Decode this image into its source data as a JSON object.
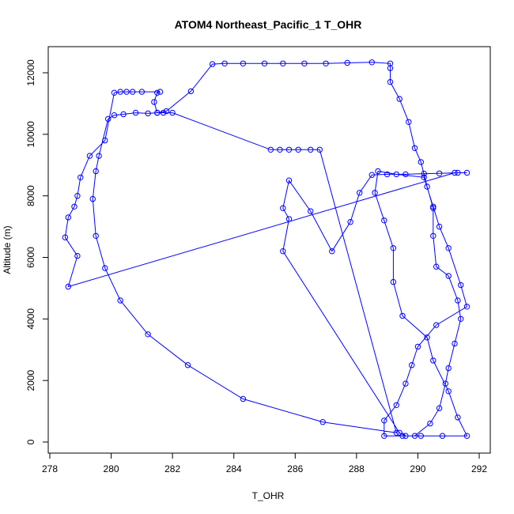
{
  "chart_data": {
    "type": "line",
    "title": "ATOM4 Northeast_Pacific_1 T_OHR",
    "xlabel": "T_OHR",
    "ylabel": "Altitude (m)",
    "xlim": [
      278,
      292
    ],
    "ylim": [
      0,
      12500
    ],
    "xticks": [
      "278",
      "280",
      "282",
      "284",
      "286",
      "288",
      "290",
      "292"
    ],
    "yticks": [
      "0",
      "2000",
      "4000",
      "6000",
      "8000",
      "10000",
      "12000"
    ],
    "grid": false,
    "legend": "none",
    "colors": {
      "series": "#0000ff",
      "axis": "#000000"
    },
    "series": [
      {
        "points": [
          [
            291.6,
            8750
          ],
          [
            291.3,
            8750
          ],
          [
            290.7,
            8730
          ],
          [
            290.2,
            8720
          ],
          [
            289.6,
            8700
          ],
          [
            289.0,
            8700
          ],
          [
            288.5,
            8680
          ],
          [
            288.1,
            8100
          ],
          [
            287.8,
            7150
          ],
          [
            287.2,
            6200
          ],
          [
            286.5,
            7500
          ],
          [
            285.8,
            8500
          ],
          [
            285.6,
            7600
          ],
          [
            285.8,
            7250
          ],
          [
            285.6,
            6200
          ],
          [
            289.4,
            300
          ],
          [
            289.6,
            200
          ],
          [
            290.1,
            200
          ],
          [
            290.8,
            200
          ],
          [
            291.6,
            200
          ],
          [
            291.3,
            800
          ],
          [
            291.0,
            1650
          ],
          [
            290.5,
            2650
          ],
          [
            290.3,
            3400
          ],
          [
            289.5,
            4100
          ],
          [
            289.2,
            5200
          ],
          [
            289.2,
            6300
          ],
          [
            288.9,
            7200
          ],
          [
            288.6,
            8100
          ],
          [
            288.7,
            8800
          ],
          [
            289.3,
            8700
          ],
          [
            290.2,
            8600
          ],
          [
            290.5,
            7650
          ],
          [
            290.7,
            7000
          ],
          [
            291.0,
            6300
          ],
          [
            291.4,
            5100
          ],
          [
            291.6,
            4400
          ],
          [
            290.6,
            3800
          ],
          [
            290.0,
            3100
          ],
          [
            289.8,
            2500
          ],
          [
            289.6,
            1900
          ],
          [
            289.3,
            1200
          ],
          [
            288.9,
            700
          ],
          [
            288.9,
            200
          ],
          [
            289.5,
            200
          ],
          [
            289.9,
            200
          ],
          [
            290.4,
            600
          ],
          [
            290.7,
            1100
          ],
          [
            290.9,
            1900
          ],
          [
            291.0,
            2400
          ],
          [
            291.2,
            3200
          ],
          [
            291.4,
            4000
          ],
          [
            291.3,
            4600
          ],
          [
            291.0,
            5400
          ],
          [
            290.6,
            5700
          ],
          [
            290.5,
            6700
          ],
          [
            290.5,
            7600
          ],
          [
            290.3,
            8300
          ],
          [
            290.1,
            9100
          ],
          [
            289.9,
            9550
          ],
          [
            289.7,
            10400
          ],
          [
            289.4,
            11150
          ],
          [
            289.1,
            11700
          ],
          [
            289.1,
            12150
          ],
          [
            289.1,
            12300
          ],
          [
            288.5,
            12340
          ],
          [
            287.7,
            12320
          ],
          [
            287.0,
            12300
          ],
          [
            286.3,
            12300
          ],
          [
            285.6,
            12300
          ],
          [
            285.0,
            12300
          ],
          [
            284.3,
            12300
          ],
          [
            283.7,
            12300
          ],
          [
            283.3,
            12280
          ],
          [
            282.6,
            11400
          ],
          [
            281.8,
            10750
          ],
          [
            281.5,
            10700
          ],
          [
            281.2,
            10680
          ],
          [
            280.8,
            10700
          ],
          [
            280.4,
            10650
          ],
          [
            280.1,
            10620
          ],
          [
            279.9,
            10500
          ],
          [
            279.6,
            9300
          ],
          [
            279.5,
            8800
          ],
          [
            279.4,
            7900
          ],
          [
            279.5,
            6700
          ],
          [
            279.8,
            5650
          ],
          [
            280.3,
            4600
          ],
          [
            281.2,
            3500
          ],
          [
            282.5,
            2500
          ],
          [
            284.3,
            1400
          ],
          [
            286.9,
            650
          ],
          [
            289.3,
            300
          ],
          [
            286.8,
            9500
          ],
          [
            286.5,
            9500
          ],
          [
            286.1,
            9500
          ],
          [
            285.8,
            9500
          ],
          [
            285.5,
            9500
          ],
          [
            285.2,
            9500
          ],
          [
            282.0,
            10700
          ],
          [
            281.7,
            10700
          ],
          [
            281.5,
            10700
          ],
          [
            281.4,
            11050
          ],
          [
            281.5,
            11350
          ],
          [
            281.6,
            11380
          ],
          [
            281.0,
            11380
          ],
          [
            280.7,
            11380
          ],
          [
            280.5,
            11380
          ],
          [
            280.3,
            11380
          ],
          [
            280.1,
            11350
          ],
          [
            279.8,
            9800
          ],
          [
            279.3,
            9300
          ],
          [
            279.0,
            8600
          ],
          [
            278.9,
            8000
          ],
          [
            278.8,
            7650
          ],
          [
            278.6,
            7300
          ],
          [
            278.5,
            6650
          ],
          [
            278.9,
            6050
          ],
          [
            278.6,
            5050
          ],
          [
            291.2,
            8750
          ]
        ]
      }
    ]
  }
}
